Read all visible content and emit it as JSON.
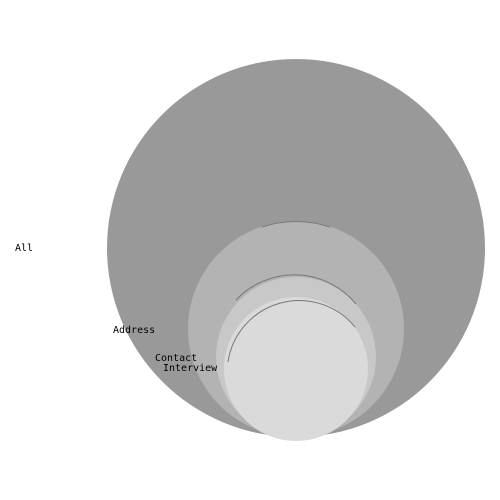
{
  "diagram": {
    "type": "nested-circles",
    "sets": [
      {
        "label": "All",
        "color": "#999999"
      },
      {
        "label": "Address",
        "color": "#b3b3b3"
      },
      {
        "label": "Contact",
        "color": "#c8c8c8"
      },
      {
        "label": "Interview",
        "color": "#dadada"
      }
    ]
  }
}
